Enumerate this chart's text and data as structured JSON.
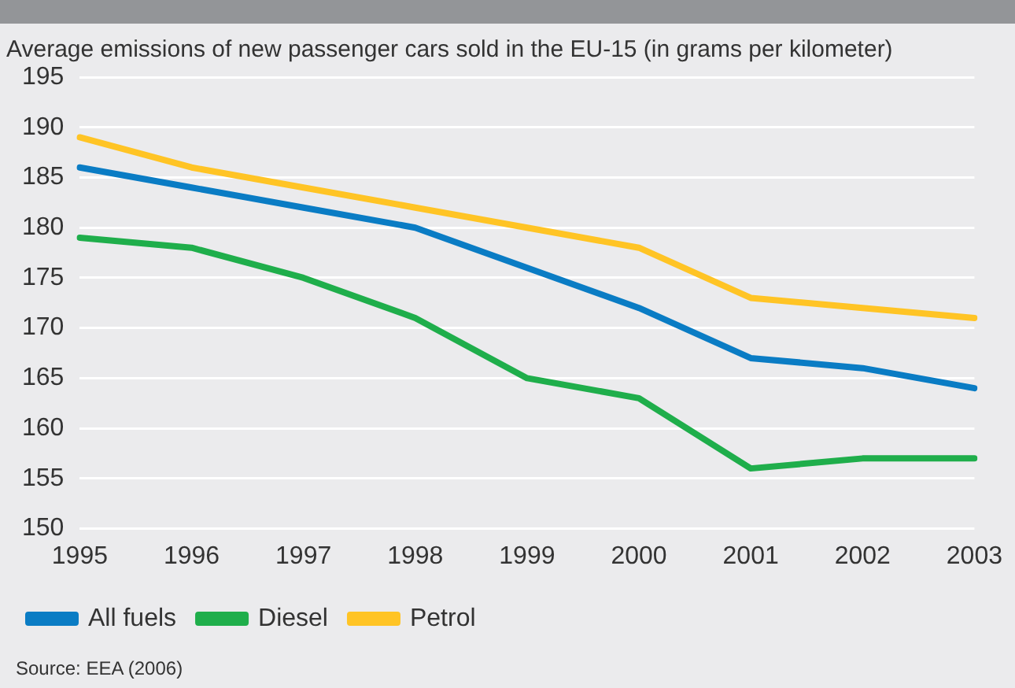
{
  "chart_data": {
    "type": "line",
    "title": "Average emissions of new passenger cars sold in the EU-15 (in grams per kilometer)",
    "categories": [
      "1995",
      "1996",
      "1997",
      "1998",
      "1999",
      "2000",
      "2001",
      "2002",
      "2003"
    ],
    "series": [
      {
        "name": "All fuels",
        "color": "#0a7cc4",
        "values": [
          186,
          184,
          182,
          180,
          176,
          172,
          167,
          166,
          164
        ]
      },
      {
        "name": "Diesel",
        "color": "#1fae4b",
        "values": [
          179,
          178,
          175,
          171,
          165,
          163,
          156,
          157,
          157
        ]
      },
      {
        "name": "Petrol",
        "color": "#ffc425",
        "values": [
          189,
          186,
          184,
          182,
          180,
          178,
          173,
          172,
          171
        ]
      }
    ],
    "ylim": [
      150,
      195
    ],
    "yticks": [
      150,
      155,
      160,
      165,
      170,
      175,
      180,
      185,
      190,
      195
    ],
    "grid": "y",
    "legend": "bottom left",
    "marker": "none",
    "line_style": "solid",
    "annotations": [
      "Source: EEA (2006)"
    ]
  }
}
